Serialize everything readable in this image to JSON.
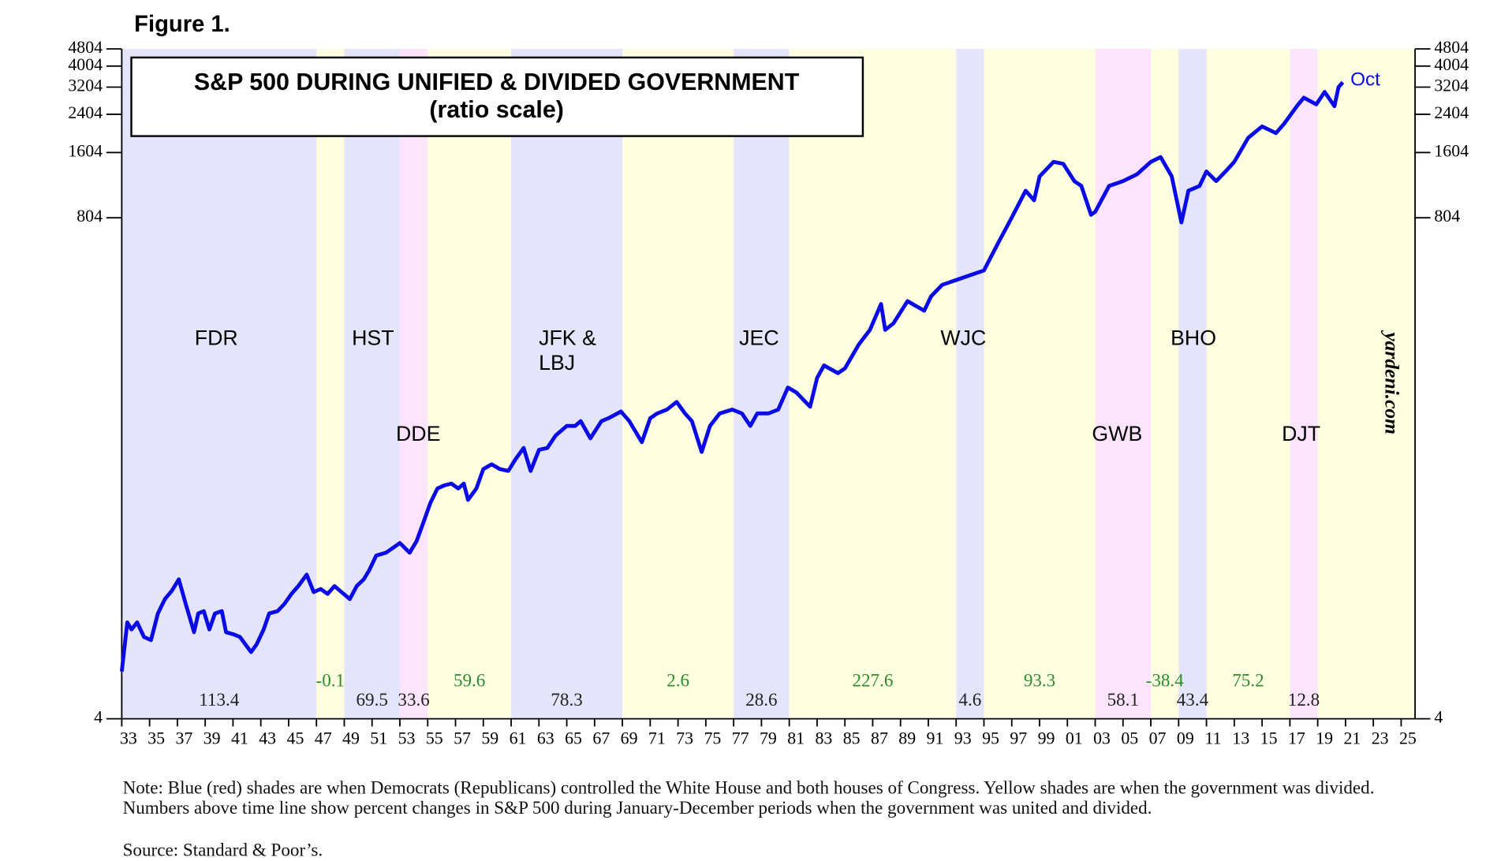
{
  "figure_label": "Figure 1.",
  "chart_data": {
    "type": "line",
    "title": "S&P 500 DURING UNIFIED & DIVIDED GOVERNMENT",
    "subtitle": "(ratio scale)",
    "yscale": "log",
    "xlim": [
      1933,
      2026
    ],
    "ylim": [
      4,
      4804
    ],
    "yticks": [
      4,
      804,
      1604,
      2404,
      3204,
      4004,
      4804
    ],
    "xticks": [
      {
        "value": 1933,
        "label": "33"
      },
      {
        "value": 1935,
        "label": "35"
      },
      {
        "value": 1937,
        "label": "37"
      },
      {
        "value": 1939,
        "label": "39"
      },
      {
        "value": 1941,
        "label": "41"
      },
      {
        "value": 1943,
        "label": "43"
      },
      {
        "value": 1945,
        "label": "45"
      },
      {
        "value": 1947,
        "label": "47"
      },
      {
        "value": 1949,
        "label": "49"
      },
      {
        "value": 1951,
        "label": "51"
      },
      {
        "value": 1953,
        "label": "53"
      },
      {
        "value": 1955,
        "label": "55"
      },
      {
        "value": 1957,
        "label": "57"
      },
      {
        "value": 1959,
        "label": "59"
      },
      {
        "value": 1961,
        "label": "61"
      },
      {
        "value": 1963,
        "label": "63"
      },
      {
        "value": 1965,
        "label": "65"
      },
      {
        "value": 1967,
        "label": "67"
      },
      {
        "value": 1969,
        "label": "69"
      },
      {
        "value": 1971,
        "label": "71"
      },
      {
        "value": 1973,
        "label": "73"
      },
      {
        "value": 1975,
        "label": "75"
      },
      {
        "value": 1977,
        "label": "77"
      },
      {
        "value": 1979,
        "label": "79"
      },
      {
        "value": 1981,
        "label": "81"
      },
      {
        "value": 1983,
        "label": "83"
      },
      {
        "value": 1985,
        "label": "85"
      },
      {
        "value": 1987,
        "label": "87"
      },
      {
        "value": 1989,
        "label": "89"
      },
      {
        "value": 1991,
        "label": "91"
      },
      {
        "value": 1993,
        "label": "93"
      },
      {
        "value": 1995,
        "label": "95"
      },
      {
        "value": 1997,
        "label": "97"
      },
      {
        "value": 1999,
        "label": "99"
      },
      {
        "value": 2001,
        "label": "01"
      },
      {
        "value": 2003,
        "label": "03"
      },
      {
        "value": 2005,
        "label": "05"
      },
      {
        "value": 2007,
        "label": "07"
      },
      {
        "value": 2009,
        "label": "09"
      },
      {
        "value": 2011,
        "label": "11"
      },
      {
        "value": 2013,
        "label": "13"
      },
      {
        "value": 2015,
        "label": "15"
      },
      {
        "value": 2017,
        "label": "17"
      },
      {
        "value": 2019,
        "label": "19"
      },
      {
        "value": 2021,
        "label": "21"
      },
      {
        "value": 2023,
        "label": "23"
      },
      {
        "value": 2025,
        "label": "25"
      }
    ],
    "periods": [
      {
        "start": 1933,
        "end": 1947,
        "color": "#e4e4fa",
        "government": "unified",
        "change": 113.4
      },
      {
        "start": 1947,
        "end": 1949,
        "color": "#fefee0",
        "government": "divided",
        "change": -0.1
      },
      {
        "start": 1949,
        "end": 1953,
        "color": "#e4e4fa",
        "government": "unified",
        "change": 69.5
      },
      {
        "start": 1953,
        "end": 1955,
        "color": "#fce4fc",
        "government": "unified",
        "change": 33.6
      },
      {
        "start": 1955,
        "end": 1961,
        "color": "#fefee0",
        "government": "divided",
        "change": 59.6
      },
      {
        "start": 1961,
        "end": 1969,
        "color": "#e4e4fa",
        "government": "unified",
        "change": 78.3
      },
      {
        "start": 1969,
        "end": 1977,
        "color": "#fefee0",
        "government": "divided",
        "change": 2.6
      },
      {
        "start": 1977,
        "end": 1981,
        "color": "#e4e4fa",
        "government": "unified",
        "change": 28.6
      },
      {
        "start": 1981,
        "end": 1993,
        "color": "#fefee0",
        "government": "divided",
        "change": 227.6
      },
      {
        "start": 1993,
        "end": 1995,
        "color": "#e4e4fa",
        "government": "unified",
        "change": 4.6
      },
      {
        "start": 1995,
        "end": 2003,
        "color": "#fefee0",
        "government": "divided",
        "change": 93.3
      },
      {
        "start": 2003,
        "end": 2007,
        "color": "#fce4fc",
        "government": "unified",
        "change": 58.1
      },
      {
        "start": 2007,
        "end": 2009,
        "color": "#fefee0",
        "government": "divided",
        "change": -38.4
      },
      {
        "start": 2009,
        "end": 2011,
        "color": "#e4e4fa",
        "government": "unified",
        "change": 43.4
      },
      {
        "start": 2011,
        "end": 2017,
        "color": "#fefee0",
        "government": "divided",
        "change": 75.2
      },
      {
        "start": 2017,
        "end": 2019,
        "color": "#fce4fc",
        "government": "unified",
        "change": 12.8
      },
      {
        "start": 2019,
        "end": 2026,
        "color": "#fefee0",
        "government": "divided",
        "change": null
      }
    ],
    "divided_label_color": "#2e8b2e",
    "unified_label_color": "#222222",
    "presidents": [
      "FDR",
      "HST",
      "DDE",
      "JFK & LBJ",
      "JEC",
      "WJC",
      "GWB",
      "BHO",
      "DJT"
    ],
    "annotation": "Oct",
    "watermark": "yardeni.com",
    "series": [
      {
        "name": "S&P 500",
        "color": "#0a0ae6",
        "x": [
          1933.0,
          1933.4,
          1933.7,
          1934.1,
          1934.6,
          1935.1,
          1935.6,
          1936.1,
          1936.6,
          1937.1,
          1937.6,
          1938.2,
          1938.5,
          1938.9,
          1939.3,
          1939.7,
          1940.2,
          1940.5,
          1941.0,
          1941.5,
          1942.3,
          1942.7,
          1943.2,
          1943.6,
          1944.2,
          1944.7,
          1945.2,
          1945.7,
          1946.3,
          1946.8,
          1947.3,
          1947.8,
          1948.3,
          1948.8,
          1949.4,
          1949.9,
          1950.4,
          1950.8,
          1951.3,
          1952.0,
          1952.5,
          1953.0,
          1953.7,
          1954.2,
          1954.7,
          1955.2,
          1955.7,
          1956.2,
          1956.7,
          1957.2,
          1957.6,
          1957.9,
          1958.5,
          1959.0,
          1959.6,
          1960.2,
          1960.8,
          1961.3,
          1961.9,
          1962.4,
          1963.0,
          1963.6,
          1964.2,
          1965.0,
          1965.6,
          1966.0,
          1966.7,
          1967.5,
          1968.0,
          1968.9,
          1969.5,
          1970.4,
          1971.0,
          1971.5,
          1972.2,
          1972.9,
          1973.5,
          1974.0,
          1974.7,
          1975.3,
          1976.0,
          1976.9,
          1977.6,
          1978.2,
          1978.7,
          1979.5,
          1980.2,
          1980.9,
          1981.5,
          1982.5,
          1983.0,
          1983.5,
          1984.5,
          1985.0,
          1986.0,
          1986.8,
          1987.6,
          1987.9,
          1988.5,
          1989.5,
          1990.7,
          1991.2,
          1992.0,
          1993.0,
          1994.0,
          1995.0,
          1996.0,
          1997.0,
          1998.0,
          1998.6,
          1999.0,
          2000.0,
          2000.7,
          2001.5,
          2002.0,
          2002.7,
          2003.0,
          2004.0,
          2005.0,
          2006.0,
          2007.0,
          2007.7,
          2008.5,
          2009.2,
          2009.7,
          2010.5,
          2011.0,
          2011.7,
          2012.5,
          2013.0,
          2014.0,
          2015.0,
          2016.0,
          2016.6,
          2017.5,
          2018.0,
          2018.9,
          2019.5,
          2020.2,
          2020.5,
          2020.8
        ],
        "values": [
          6.6,
          11.1,
          10.3,
          11.1,
          9.5,
          9.2,
          12.2,
          14.2,
          15.5,
          17.5,
          13.5,
          10.0,
          12.2,
          12.5,
          10.3,
          12.2,
          12.5,
          10.0,
          9.8,
          9.5,
          8.1,
          8.8,
          10.3,
          12.2,
          12.5,
          13.5,
          15.0,
          16.3,
          18.4,
          15.3,
          15.8,
          15.0,
          16.3,
          15.3,
          14.2,
          16.3,
          17.5,
          19.3,
          22.5,
          23.2,
          24.4,
          25.7,
          23.2,
          26.2,
          32.1,
          39.4,
          45.8,
          47.3,
          48.2,
          45.8,
          48.2,
          40.6,
          45.8,
          56.2,
          59.1,
          56.2,
          55.1,
          62.2,
          70.3,
          55.1,
          68.9,
          70.3,
          80.2,
          88.8,
          88.8,
          93.4,
          77.8,
          93.4,
          96.3,
          103.4,
          93.4,
          74.7,
          96.3,
          101.3,
          105.5,
          114.4,
          101.3,
          93.4,
          67.4,
          88.8,
          101.3,
          105.5,
          101.3,
          88.8,
          101.3,
          101.3,
          105.5,
          133.2,
          126.7,
          108.8,
          147.6,
          168.4,
          155.2,
          163.2,
          210.4,
          245.3,
          322.6,
          245.3,
          263.2,
          332.7,
          300.5,
          350.1,
          395.2,
          415.9,
          437.6,
          460.5,
          611.7,
          805,
          1070,
          967,
          1247,
          1452,
          1424,
          1185,
          1126,
          830,
          856,
          1126,
          1185,
          1273,
          1452,
          1528,
          1247,
          765,
          1070,
          1126,
          1312,
          1185,
          1339,
          1452,
          1873,
          2114,
          1970,
          2180,
          2618,
          2867,
          2671,
          3047,
          2618,
          3206,
          3374
        ]
      }
    ]
  },
  "note": "Note: Blue (red) shades are when Democrats (Republicans) controlled the White House and both houses of Congress. Yellow shades are when the government was divided. Numbers above time line show percent changes in S&P 500 during January-December periods when the government was united and divided.",
  "source": "Source: Standard & Poor’s."
}
